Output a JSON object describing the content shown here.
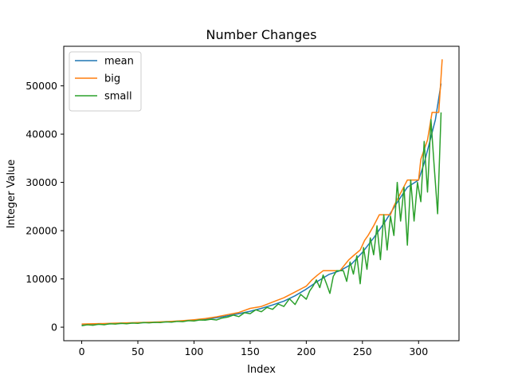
{
  "chart_data": {
    "type": "line",
    "title": "Number Changes",
    "xlabel": "Index",
    "ylabel": "Integer Value",
    "xlim": [
      -16,
      336
    ],
    "ylim": [
      -2800,
      58200
    ],
    "xticks": [
      0,
      50,
      100,
      150,
      200,
      250,
      300
    ],
    "yticks": [
      0,
      10000,
      20000,
      30000,
      40000,
      50000
    ],
    "grid": false,
    "legend": "top-left",
    "series": [
      {
        "name": "mean",
        "color": "#1f77b4",
        "x": [
          0,
          10,
          20,
          30,
          40,
          50,
          60,
          70,
          80,
          90,
          100,
          110,
          120,
          130,
          140,
          150,
          160,
          170,
          180,
          190,
          200,
          210,
          220,
          230,
          240,
          250,
          260,
          270,
          280,
          290,
          300,
          305,
          310,
          315,
          320
        ],
        "y": [
          500,
          580,
          650,
          730,
          820,
          900,
          980,
          1050,
          1150,
          1280,
          1450,
          1650,
          1950,
          2350,
          2800,
          3300,
          3900,
          4600,
          5400,
          6500,
          7900,
          9500,
          10900,
          11700,
          13000,
          15500,
          18500,
          21800,
          25500,
          29000,
          30500,
          34000,
          38500,
          43000,
          50500
        ]
      },
      {
        "name": "big",
        "color": "#ff7f0e",
        "x": [
          0,
          10,
          20,
          30,
          40,
          50,
          60,
          70,
          80,
          90,
          100,
          110,
          120,
          130,
          140,
          150,
          160,
          170,
          180,
          190,
          200,
          205,
          210,
          215,
          220,
          230,
          238,
          242,
          248,
          252,
          255,
          260,
          265,
          270,
          275,
          278,
          290,
          300,
          302,
          308,
          312,
          318,
          321
        ],
        "y": [
          650,
          700,
          760,
          830,
          900,
          950,
          1020,
          1100,
          1200,
          1350,
          1550,
          1800,
          2150,
          2600,
          3050,
          3900,
          4300,
          5200,
          6100,
          7300,
          8500,
          9800,
          10800,
          11700,
          11700,
          11700,
          14000,
          14800,
          16000,
          18000,
          19000,
          21000,
          23300,
          23300,
          23300,
          25100,
          30500,
          30500,
          34800,
          38800,
          44500,
          44500,
          55500
        ]
      },
      {
        "name": "small",
        "color": "#2ca02c",
        "x": [
          0,
          5,
          10,
          15,
          20,
          25,
          30,
          35,
          40,
          45,
          50,
          55,
          60,
          65,
          70,
          75,
          80,
          85,
          90,
          95,
          100,
          105,
          110,
          115,
          120,
          125,
          130,
          135,
          140,
          145,
          150,
          155,
          160,
          165,
          170,
          175,
          180,
          185,
          190,
          195,
          200,
          203,
          206,
          209,
          212,
          215,
          218,
          221,
          224,
          227,
          230,
          233,
          236,
          239,
          242,
          245,
          248,
          251,
          254,
          257,
          260,
          263,
          266,
          269,
          272,
          275,
          278,
          281,
          284,
          287,
          290,
          293,
          296,
          299,
          302,
          305,
          308,
          311,
          314,
          317,
          320
        ],
        "y": [
          300,
          500,
          400,
          600,
          500,
          700,
          650,
          800,
          700,
          850,
          800,
          950,
          900,
          1000,
          950,
          1100,
          1050,
          1200,
          1150,
          1350,
          1300,
          1500,
          1450,
          1650,
          1500,
          1900,
          2100,
          2500,
          2200,
          3000,
          2800,
          3600,
          3200,
          4100,
          3700,
          4800,
          4300,
          5900,
          4700,
          6800,
          5800,
          7500,
          8500,
          9800,
          8200,
          10800,
          9000,
          7000,
          10500,
          11700,
          11700,
          11700,
          9500,
          13500,
          11000,
          14800,
          9000,
          16500,
          12000,
          18500,
          15000,
          21000,
          14000,
          23300,
          16000,
          23000,
          19000,
          30000,
          22000,
          29000,
          17000,
          30500,
          22000,
          30000,
          26000,
          38500,
          28000,
          43000,
          33000,
          23500,
          44500
        ]
      }
    ]
  }
}
